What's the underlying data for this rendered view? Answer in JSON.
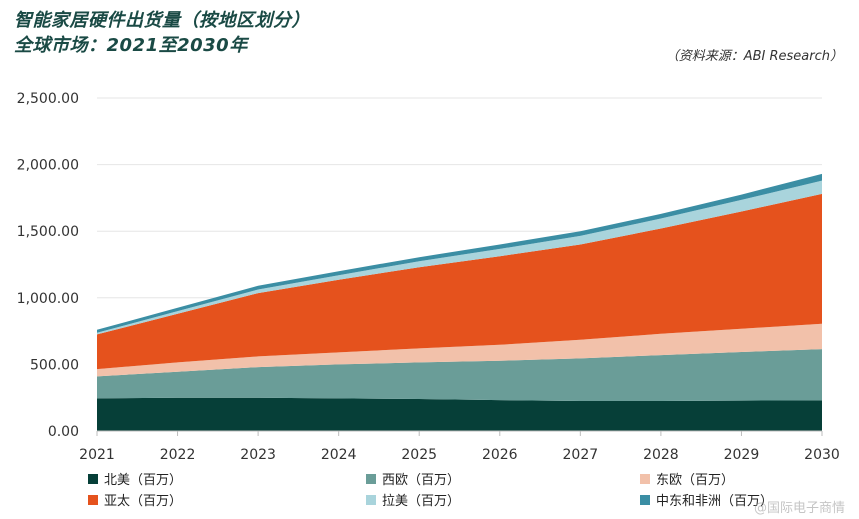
{
  "title_line1": "智能家居硬件出货量（按地区划分）",
  "title_line2": "全球市场：2021至2030年",
  "source": "（资料来源：ABI Research）",
  "watermark": "@国际电子商情",
  "chart_data": {
    "type": "area",
    "stacked": true,
    "title": "智能家居硬件出货量（按地区划分）",
    "subtitle": "全球市场：2021至2030年",
    "x": [
      "2021",
      "2022",
      "2023",
      "2024",
      "2025",
      "2026",
      "2027",
      "2028",
      "2029",
      "2030"
    ],
    "ylim": [
      0,
      2500
    ],
    "yticks": [
      "0.00",
      "500.00",
      "1,000.00",
      "1,500.00",
      "2,000.00",
      "2,500.00"
    ],
    "grid": true,
    "legend_position": "bottom",
    "series": [
      {
        "name": "北美（百万）",
        "color": "#063f38",
        "values": [
          245,
          250,
          250,
          245,
          240,
          232,
          225,
          225,
          228,
          230
        ]
      },
      {
        "name": "西欧（百万）",
        "color": "#6a9d98",
        "values": [
          165,
          195,
          230,
          255,
          275,
          295,
          320,
          345,
          365,
          385
        ]
      },
      {
        "name": "东欧（百万）",
        "color": "#f2c1aa",
        "values": [
          55,
          70,
          80,
          90,
          105,
          120,
          140,
          160,
          175,
          190
        ]
      },
      {
        "name": "亚太（百万）",
        "color": "#e5521d",
        "values": [
          260,
          365,
          475,
          545,
          610,
          665,
          715,
          790,
          880,
          975
        ]
      },
      {
        "name": "拉美（百万）",
        "color": "#a9d4dc",
        "values": [
          12,
          20,
          27,
          35,
          45,
          55,
          65,
          75,
          87,
          100
        ]
      },
      {
        "name": "中东和非洲（百万）",
        "color": "#3b8ea4",
        "values": [
          23,
          25,
          28,
          30,
          30,
          33,
          35,
          35,
          40,
          50
        ]
      }
    ]
  }
}
